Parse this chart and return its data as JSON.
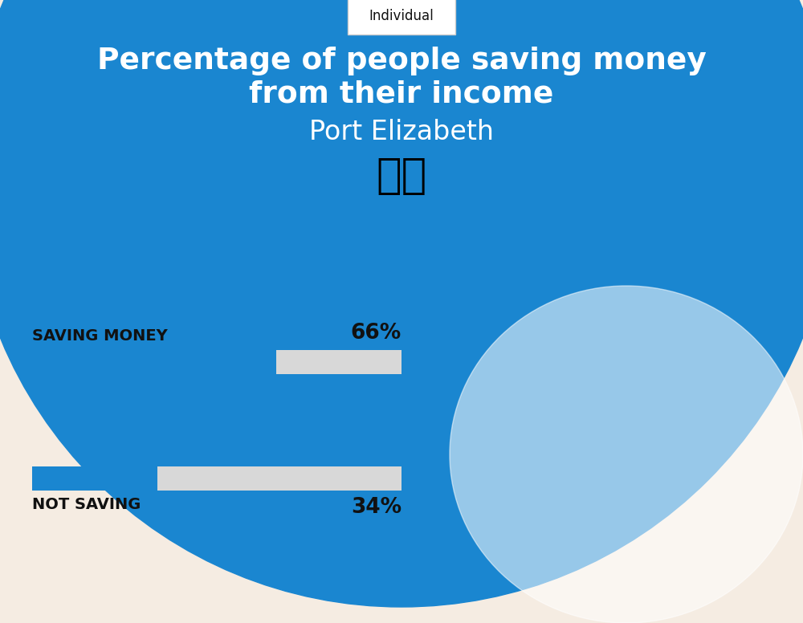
{
  "title_line1": "Percentage of people saving money",
  "title_line2": "from their income",
  "subtitle": "Port Elizabeth",
  "tab_label": "Individual",
  "bg_color": "#f5ece2",
  "blue_color": "#1a86d0",
  "bar_bg_color": "#d8d8d8",
  "text_color_dark": "#111111",
  "white": "#ffffff",
  "circle_blue": "#1a86d0",
  "saving_label": "SAVING MONEY",
  "saving_value": 66,
  "saving_pct_label": "66%",
  "not_saving_label": "NOT SAVING",
  "not_saving_value": 34,
  "not_saving_pct_label": "34%",
  "label_fontsize": 14,
  "pct_fontsize": 19,
  "title_fontsize": 27,
  "subtitle_fontsize": 24,
  "tab_fontsize": 12
}
